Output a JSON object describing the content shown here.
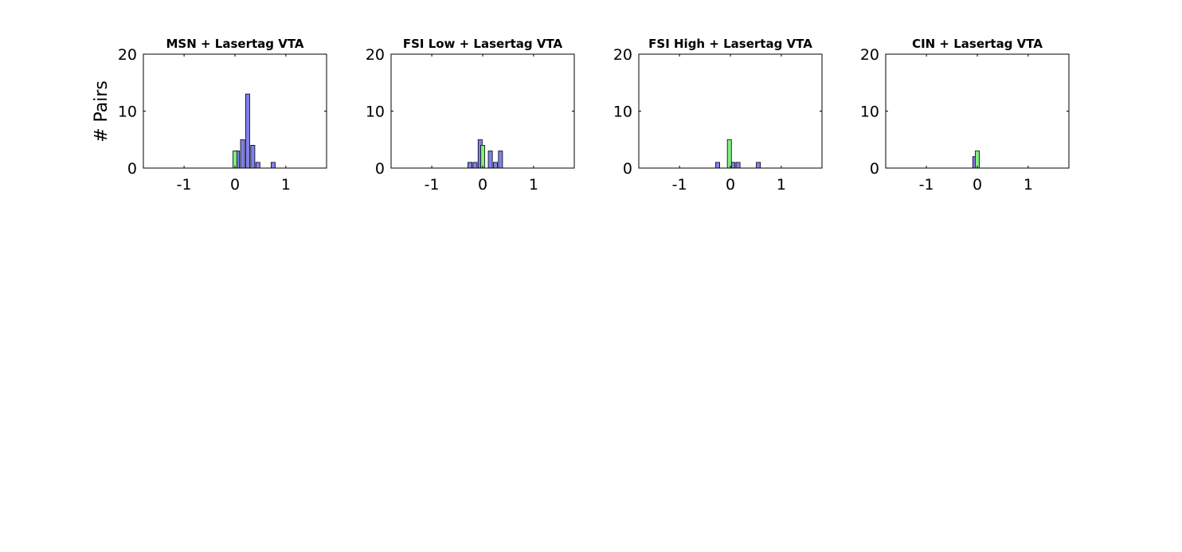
{
  "figure": {
    "ylabel": "# Pairs"
  },
  "colors": {
    "blue": "#8080f0",
    "green": "#80ee80",
    "edge": "#000000",
    "axis": "#000000"
  },
  "chart_data": [
    {
      "type": "bar",
      "title": "MSN + Lasertag VTA",
      "xlim": [
        -1.8,
        1.8
      ],
      "ylim": [
        0,
        20
      ],
      "xticks": [
        -1,
        0,
        1
      ],
      "xtick_labels": [
        "-1",
        "0",
        "1"
      ],
      "yticks": [
        0,
        10,
        20
      ],
      "ytick_labels": [
        "0",
        "10",
        "20"
      ],
      "bin_width": 0.08,
      "series": [
        {
          "color": "blue",
          "bins": [
            [
              0.05,
              3
            ],
            [
              0.15,
              5
            ],
            [
              0.25,
              13
            ],
            [
              0.35,
              4
            ],
            [
              0.45,
              1
            ],
            [
              0.75,
              1
            ]
          ]
        },
        {
          "color": "green",
          "bins": [
            [
              0.0,
              3
            ]
          ]
        }
      ]
    },
    {
      "type": "bar",
      "title": "FSI Low + Lasertag VTA",
      "xlim": [
        -1.8,
        1.8
      ],
      "ylim": [
        0,
        20
      ],
      "xticks": [
        -1,
        0,
        1
      ],
      "xtick_labels": [
        "-1",
        "0",
        "1"
      ],
      "yticks": [
        0,
        10,
        20
      ],
      "ytick_labels": [
        "0",
        "10",
        "20"
      ],
      "bin_width": 0.08,
      "series": [
        {
          "color": "blue",
          "bins": [
            [
              -0.25,
              1
            ],
            [
              -0.15,
              1
            ],
            [
              -0.05,
              5
            ],
            [
              0.15,
              3
            ],
            [
              0.25,
              1
            ],
            [
              0.35,
              3
            ]
          ]
        },
        {
          "color": "green",
          "bins": [
            [
              0.0,
              4
            ]
          ]
        }
      ]
    },
    {
      "type": "bar",
      "title": "FSI High + Lasertag VTA",
      "xlim": [
        -1.8,
        1.8
      ],
      "ylim": [
        0,
        20
      ],
      "xticks": [
        -1,
        0,
        1
      ],
      "xtick_labels": [
        "-1",
        "0",
        "1"
      ],
      "yticks": [
        0,
        10,
        20
      ],
      "ytick_labels": [
        "0",
        "10",
        "20"
      ],
      "bin_width": 0.08,
      "series": [
        {
          "color": "blue",
          "bins": [
            [
              -0.25,
              1
            ],
            [
              0.05,
              1
            ],
            [
              0.15,
              1
            ],
            [
              0.55,
              1
            ]
          ]
        },
        {
          "color": "green",
          "bins": [
            [
              -0.02,
              5
            ]
          ]
        }
      ]
    },
    {
      "type": "bar",
      "title": "CIN + Lasertag VTA",
      "xlim": [
        -1.8,
        1.8
      ],
      "ylim": [
        0,
        20
      ],
      "xticks": [
        -1,
        0,
        1
      ],
      "xtick_labels": [
        "-1",
        "0",
        "1"
      ],
      "yticks": [
        0,
        10,
        20
      ],
      "ytick_labels": [
        "0",
        "10",
        "20"
      ],
      "bin_width": 0.08,
      "series": [
        {
          "color": "blue",
          "bins": [
            [
              -0.05,
              2
            ]
          ]
        },
        {
          "color": "green",
          "bins": [
            [
              0.0,
              3
            ]
          ]
        }
      ]
    }
  ]
}
